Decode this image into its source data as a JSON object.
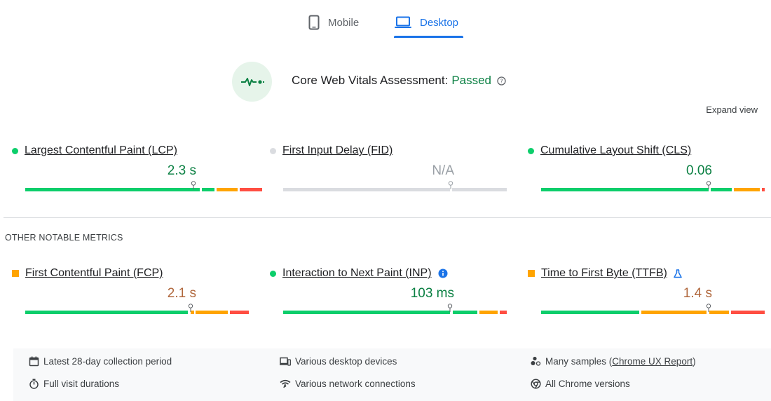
{
  "tabs": {
    "mobile": "Mobile",
    "desktop": "Desktop",
    "active": "desktop"
  },
  "assessment": {
    "label": "Core Web Vitals Assessment:",
    "status": "Passed"
  },
  "expand": "Expand view",
  "core_metrics": [
    {
      "name": "Largest Contentful Paint (LCP)",
      "value": "2.3 s",
      "status": "good",
      "marker_fraction": 0.755
    },
    {
      "name": "First Input Delay (FID)",
      "value": "N/A",
      "status": "none",
      "marker_fraction": 0.75
    },
    {
      "name": "Cumulative Layout Shift (CLS)",
      "value": "0.06",
      "status": "good",
      "marker_fraction": 0.75
    }
  ],
  "other_label": "OTHER NOTABLE METRICS",
  "other_metrics": [
    {
      "name": "First Contentful Paint (FCP)",
      "value": "2.1 s",
      "status": "average",
      "marker_fraction": 0.735
    },
    {
      "name": "Interaction to Next Paint (INP)",
      "value": "103 ms",
      "status": "good",
      "marker_fraction": 0.745
    },
    {
      "name": "Time to First Byte (TTFB)",
      "value": "1.4 s",
      "status": "average",
      "marker_fraction": 0.75
    }
  ],
  "summary": {
    "collection": "Latest 28-day collection period",
    "devices": "Various desktop devices",
    "samples_prefix": "Many samples (",
    "samples_link": "Chrome UX Report",
    "samples_suffix": ")",
    "durations": "Full visit durations",
    "network": "Various network connections",
    "versions": "All Chrome versions"
  },
  "colors": {
    "good": "#0cce6b",
    "average": "#ffa400",
    "poor": "#ff4e42",
    "none": "#dadce0",
    "good_text": "#0b8043",
    "average_text": "#b0673c",
    "none_text": "#9aa0a6",
    "accent": "#1a73e8"
  }
}
